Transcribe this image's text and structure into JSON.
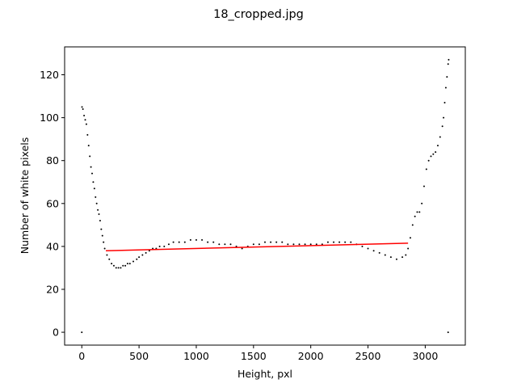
{
  "chart_data": {
    "type": "scatter",
    "title": "18_cropped.jpg",
    "xlabel": "Height, pxl",
    "ylabel": "Number of white pixels",
    "xlim": [
      -150,
      3350
    ],
    "ylim": [
      -6,
      133
    ],
    "xticks": [
      0,
      500,
      1000,
      1500,
      2000,
      2500,
      3000
    ],
    "yticks": [
      0,
      20,
      40,
      60,
      80,
      100,
      120
    ],
    "grid": false,
    "series": [
      {
        "kind": "scatter",
        "color": "#000000",
        "marker": "dot",
        "points": [
          [
            0,
            0
          ],
          [
            2,
            105
          ],
          [
            10,
            104
          ],
          [
            20,
            101
          ],
          [
            30,
            99
          ],
          [
            40,
            97
          ],
          [
            50,
            92
          ],
          [
            60,
            87
          ],
          [
            70,
            82
          ],
          [
            80,
            77
          ],
          [
            90,
            74
          ],
          [
            100,
            70
          ],
          [
            110,
            67
          ],
          [
            120,
            63
          ],
          [
            130,
            60
          ],
          [
            140,
            57
          ],
          [
            150,
            55
          ],
          [
            160,
            52
          ],
          [
            170,
            48
          ],
          [
            180,
            45
          ],
          [
            190,
            42
          ],
          [
            200,
            39
          ],
          [
            220,
            36
          ],
          [
            240,
            34
          ],
          [
            260,
            32
          ],
          [
            280,
            31
          ],
          [
            300,
            30
          ],
          [
            320,
            30
          ],
          [
            340,
            30
          ],
          [
            360,
            31
          ],
          [
            380,
            31
          ],
          [
            400,
            32
          ],
          [
            420,
            32
          ],
          [
            450,
            33
          ],
          [
            480,
            34
          ],
          [
            500,
            35
          ],
          [
            530,
            36
          ],
          [
            560,
            37
          ],
          [
            590,
            38
          ],
          [
            620,
            39
          ],
          [
            650,
            39
          ],
          [
            680,
            40
          ],
          [
            720,
            40
          ],
          [
            760,
            41
          ],
          [
            800,
            42
          ],
          [
            850,
            42
          ],
          [
            900,
            42
          ],
          [
            950,
            43
          ],
          [
            1000,
            43
          ],
          [
            1050,
            43
          ],
          [
            1100,
            42
          ],
          [
            1150,
            42
          ],
          [
            1200,
            41
          ],
          [
            1250,
            41
          ],
          [
            1300,
            41
          ],
          [
            1350,
            40
          ],
          [
            1400,
            39
          ],
          [
            1450,
            40
          ],
          [
            1500,
            41
          ],
          [
            1550,
            41
          ],
          [
            1600,
            42
          ],
          [
            1650,
            42
          ],
          [
            1700,
            42
          ],
          [
            1750,
            42
          ],
          [
            1800,
            41
          ],
          [
            1850,
            41
          ],
          [
            1900,
            41
          ],
          [
            1950,
            41
          ],
          [
            2000,
            41
          ],
          [
            2050,
            41
          ],
          [
            2100,
            41
          ],
          [
            2150,
            42
          ],
          [
            2200,
            42
          ],
          [
            2250,
            42
          ],
          [
            2300,
            42
          ],
          [
            2350,
            42
          ],
          [
            2400,
            41
          ],
          [
            2450,
            40
          ],
          [
            2500,
            39
          ],
          [
            2550,
            38
          ],
          [
            2600,
            37
          ],
          [
            2650,
            36
          ],
          [
            2700,
            35
          ],
          [
            2750,
            34
          ],
          [
            2800,
            35
          ],
          [
            2830,
            36
          ],
          [
            2850,
            39
          ],
          [
            2870,
            44
          ],
          [
            2890,
            50
          ],
          [
            2910,
            54
          ],
          [
            2930,
            56
          ],
          [
            2950,
            56
          ],
          [
            2970,
            60
          ],
          [
            2990,
            68
          ],
          [
            3010,
            76
          ],
          [
            3030,
            80
          ],
          [
            3050,
            82
          ],
          [
            3070,
            83
          ],
          [
            3090,
            84
          ],
          [
            3110,
            87
          ],
          [
            3130,
            91
          ],
          [
            3150,
            96
          ],
          [
            3160,
            100
          ],
          [
            3170,
            107
          ],
          [
            3180,
            114
          ],
          [
            3190,
            119
          ],
          [
            3200,
            125
          ],
          [
            3205,
            127
          ],
          [
            3200,
            0
          ]
        ]
      },
      {
        "kind": "line",
        "color": "#ff0000",
        "points": [
          [
            210,
            38
          ],
          [
            2850,
            41.5
          ]
        ]
      }
    ]
  }
}
